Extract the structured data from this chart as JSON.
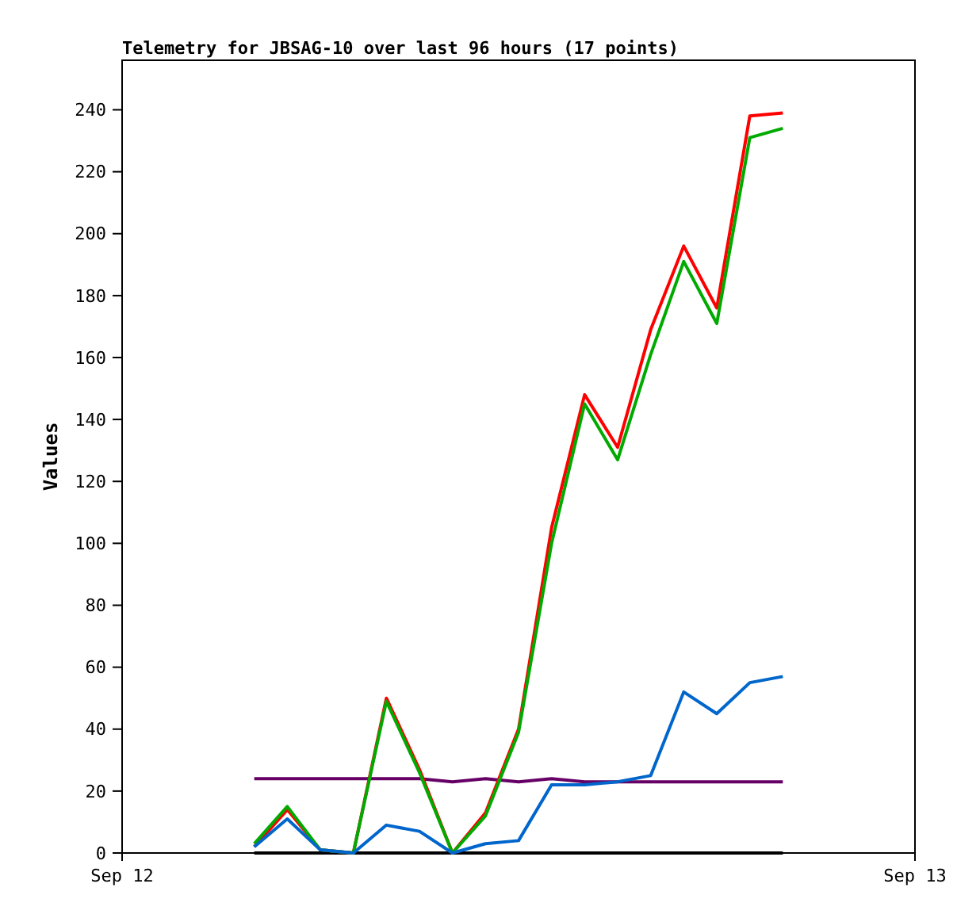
{
  "chart_data": {
    "type": "line",
    "title": "Telemetry for JBSAG-10 over last 96 hours (17 points)",
    "ylabel": "Values",
    "categories": [
      "Sep 12",
      null,
      null,
      null,
      null,
      null,
      null,
      null,
      null,
      null,
      null,
      null,
      null,
      null,
      null,
      null,
      null,
      null,
      null,
      null,
      null,
      null,
      null,
      null,
      "Sep 13"
    ],
    "ylim": [
      0,
      256
    ],
    "yticks": [
      0,
      20,
      40,
      60,
      80,
      100,
      120,
      140,
      160,
      180,
      200,
      220,
      240
    ],
    "grid": false,
    "marker": "none",
    "line_style": "solid",
    "series": [
      {
        "color": "#000000",
        "values": [
          null,
          null,
          null,
          null,
          0,
          0,
          0,
          0,
          0,
          0,
          0,
          0,
          0,
          0,
          0,
          0,
          0,
          0,
          0,
          0,
          0,
          null,
          null,
          null,
          null
        ]
      },
      {
        "color": "#660066",
        "values": [
          null,
          null,
          null,
          null,
          24,
          24,
          24,
          24,
          24,
          24,
          23,
          24,
          23,
          24,
          23,
          23,
          23,
          23,
          23,
          23,
          23,
          null,
          null,
          null,
          null
        ]
      },
      {
        "color": "#ff0000",
        "values": [
          null,
          null,
          null,
          null,
          2,
          14,
          1,
          0,
          50,
          27,
          0,
          13,
          40,
          105,
          148,
          131,
          169,
          196,
          176,
          238,
          239,
          null,
          null,
          null,
          null
        ]
      },
      {
        "color": "#00aa00",
        "values": [
          null,
          null,
          null,
          null,
          3,
          15,
          1,
          0,
          49,
          26,
          0,
          12,
          39,
          100,
          145,
          127,
          161,
          191,
          171,
          231,
          234,
          null,
          null,
          null,
          null
        ]
      },
      {
        "color": "#0066cc",
        "values": [
          null,
          null,
          null,
          null,
          2,
          11,
          1,
          0,
          9,
          7,
          0,
          3,
          4,
          22,
          22,
          23,
          25,
          52,
          45,
          55,
          57,
          null,
          null,
          null,
          null
        ]
      }
    ]
  }
}
